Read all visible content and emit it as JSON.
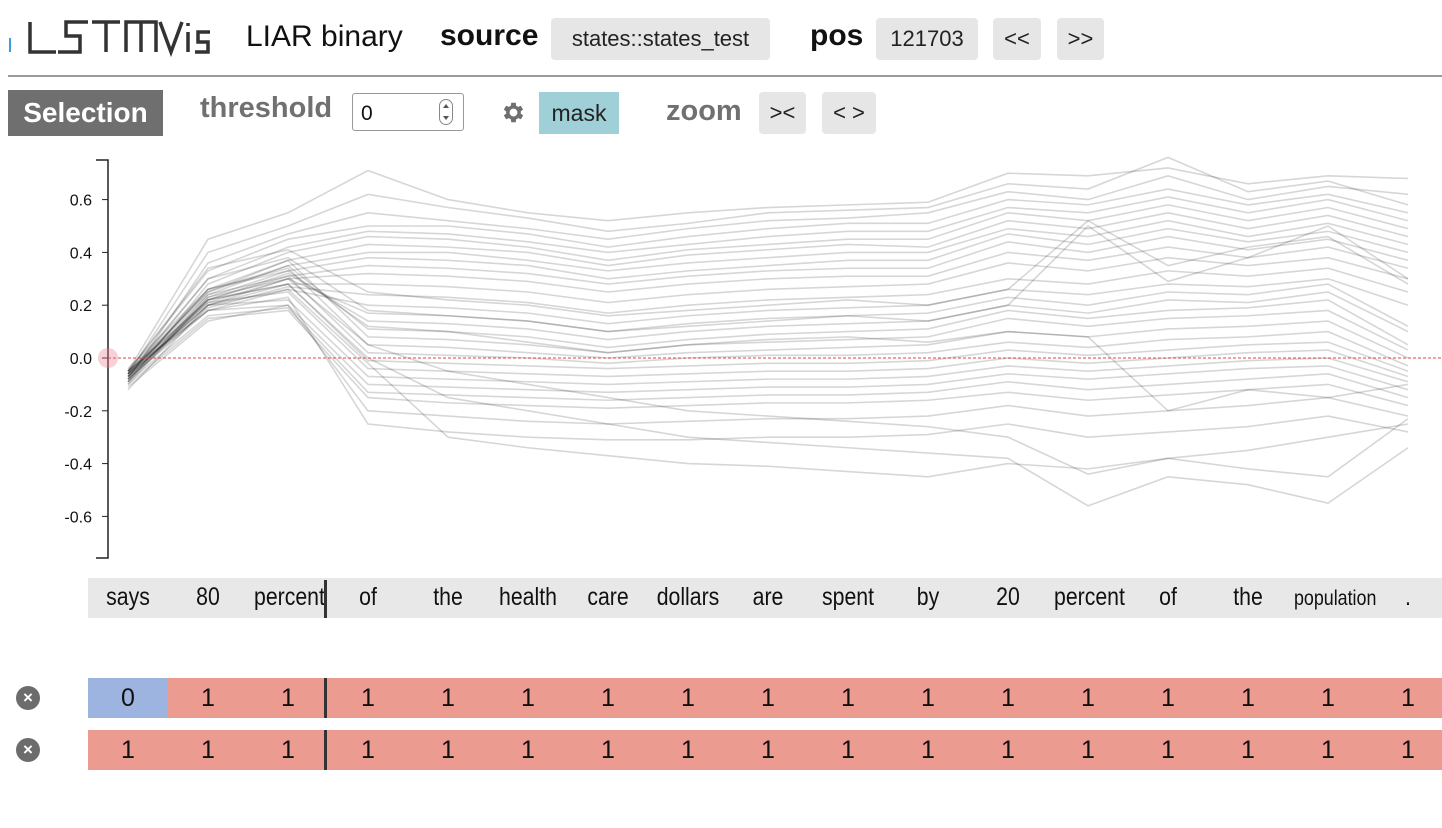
{
  "header": {
    "logo": "LSTMVis",
    "subtitle": "LIAR binary",
    "source_label": "source",
    "source_value": "states::states_test",
    "pos_label": "pos",
    "pos_value": "121703",
    "prev_label": "<<",
    "next_label": ">>"
  },
  "toolbar": {
    "selection_label": "Selection",
    "threshold_label": "threshold",
    "threshold_value": "0",
    "settings_icon": "gear-icon",
    "mask_label": "mask",
    "zoom_label": "zoom",
    "zoom_in_label": "><",
    "zoom_out_label": "< >"
  },
  "words": [
    "says",
    "80",
    "percent",
    "of",
    "the",
    "health",
    "care",
    "dollars",
    "are",
    "spent",
    "by",
    "20",
    "percent",
    "of",
    "the",
    "population",
    "."
  ],
  "rows": [
    {
      "values": [
        "0",
        "1",
        "1",
        "1",
        "1",
        "1",
        "1",
        "1",
        "1",
        "1",
        "1",
        "1",
        "1",
        "1",
        "1",
        "1",
        "1"
      ]
    },
    {
      "values": [
        "1",
        "1",
        "1",
        "1",
        "1",
        "1",
        "1",
        "1",
        "1",
        "1",
        "1",
        "1",
        "1",
        "1",
        "1",
        "1",
        "1"
      ]
    }
  ],
  "colors": {
    "zero": "#9db4e0",
    "one": "#ec9b90",
    "threshold_line": "#d44"
  },
  "chart_data": {
    "type": "line",
    "x": [
      "says",
      "80",
      "percent",
      "of",
      "the",
      "health",
      "care",
      "dollars",
      "are",
      "spent",
      "by",
      "20",
      "percent",
      "of",
      "the",
      "population",
      "."
    ],
    "ylim": [
      -0.75,
      0.75
    ],
    "yticks": [
      "0.6",
      "0.4",
      "0.2",
      "0.0",
      "-0.2",
      "-0.4",
      "-0.6"
    ],
    "threshold": 0,
    "series": [
      {
        "values": [
          -0.05,
          0.45,
          0.55,
          0.71,
          0.6,
          0.55,
          0.52,
          0.55,
          0.57,
          0.58,
          0.59,
          0.7,
          0.69,
          0.72,
          0.66,
          0.69,
          0.68
        ]
      },
      {
        "values": [
          -0.06,
          0.4,
          0.5,
          0.62,
          0.57,
          0.53,
          0.48,
          0.51,
          0.55,
          0.56,
          0.57,
          0.66,
          0.64,
          0.76,
          0.63,
          0.67,
          0.58
        ]
      },
      {
        "values": [
          -0.08,
          0.36,
          0.47,
          0.55,
          0.52,
          0.49,
          0.45,
          0.49,
          0.52,
          0.53,
          0.55,
          0.63,
          0.6,
          0.69,
          0.6,
          0.65,
          0.62
        ]
      },
      {
        "values": [
          -0.05,
          0.33,
          0.45,
          0.5,
          0.5,
          0.47,
          0.42,
          0.46,
          0.49,
          0.51,
          0.51,
          0.6,
          0.58,
          0.64,
          0.58,
          0.62,
          0.55
        ]
      },
      {
        "values": [
          -0.07,
          0.3,
          0.42,
          0.48,
          0.47,
          0.44,
          0.4,
          0.43,
          0.46,
          0.48,
          0.48,
          0.57,
          0.55,
          0.61,
          0.55,
          0.6,
          0.52
        ]
      },
      {
        "values": [
          -0.09,
          0.28,
          0.4,
          0.46,
          0.45,
          0.42,
          0.37,
          0.41,
          0.43,
          0.45,
          0.45,
          0.55,
          0.52,
          0.58,
          0.52,
          0.57,
          0.49
        ]
      },
      {
        "values": [
          -0.04,
          0.26,
          0.37,
          0.43,
          0.42,
          0.4,
          0.35,
          0.39,
          0.41,
          0.43,
          0.42,
          0.52,
          0.49,
          0.55,
          0.49,
          0.54,
          0.46
        ]
      },
      {
        "values": [
          -0.06,
          0.25,
          0.35,
          0.4,
          0.4,
          0.37,
          0.33,
          0.36,
          0.38,
          0.4,
          0.4,
          0.49,
          0.46,
          0.52,
          0.46,
          0.51,
          0.43
        ]
      },
      {
        "values": [
          -0.08,
          0.23,
          0.33,
          0.38,
          0.37,
          0.35,
          0.3,
          0.33,
          0.35,
          0.37,
          0.37,
          0.47,
          0.43,
          0.49,
          0.44,
          0.48,
          0.4
        ]
      },
      {
        "values": [
          -0.05,
          0.22,
          0.31,
          0.35,
          0.34,
          0.32,
          0.28,
          0.31,
          0.33,
          0.34,
          0.34,
          0.44,
          0.4,
          0.46,
          0.41,
          0.45,
          0.37
        ]
      },
      {
        "values": [
          -0.07,
          0.21,
          0.3,
          0.32,
          0.31,
          0.29,
          0.25,
          0.28,
          0.3,
          0.31,
          0.31,
          0.4,
          0.37,
          0.42,
          0.38,
          0.42,
          0.34
        ]
      },
      {
        "values": [
          -0.06,
          0.2,
          0.28,
          0.28,
          0.27,
          0.25,
          0.21,
          0.24,
          0.26,
          0.27,
          0.28,
          0.36,
          0.33,
          0.38,
          0.35,
          0.38,
          0.3
        ]
      },
      {
        "values": [
          -0.08,
          0.19,
          0.27,
          0.24,
          0.23,
          0.21,
          0.17,
          0.2,
          0.22,
          0.23,
          0.24,
          0.3,
          0.28,
          0.33,
          0.31,
          0.34,
          0.25
        ]
      },
      {
        "values": [
          -0.05,
          0.18,
          0.26,
          0.2,
          0.19,
          0.17,
          0.13,
          0.16,
          0.18,
          0.19,
          0.2,
          0.26,
          0.24,
          0.28,
          0.27,
          0.3,
          0.2
        ]
      },
      {
        "values": [
          -0.07,
          0.2,
          0.3,
          0.17,
          0.16,
          0.14,
          0.1,
          0.13,
          0.15,
          0.16,
          0.17,
          0.23,
          0.2,
          0.25,
          0.24,
          0.28,
          0.12
        ]
      },
      {
        "values": [
          -0.06,
          0.22,
          0.32,
          0.14,
          0.13,
          0.11,
          0.07,
          0.1,
          0.12,
          0.13,
          0.14,
          0.2,
          0.17,
          0.22,
          0.21,
          0.25,
          0.1
        ]
      },
      {
        "values": [
          -0.09,
          0.24,
          0.35,
          0.11,
          0.1,
          0.08,
          0.04,
          0.07,
          0.09,
          0.1,
          0.11,
          0.18,
          0.15,
          0.18,
          0.19,
          0.22,
          0.05
        ]
      },
      {
        "values": [
          -0.05,
          0.25,
          0.37,
          0.08,
          0.07,
          0.05,
          0.02,
          0.05,
          0.06,
          0.07,
          0.08,
          0.15,
          0.12,
          0.15,
          0.16,
          0.18,
          0.03
        ]
      },
      {
        "values": [
          -0.07,
          0.26,
          0.34,
          0.05,
          0.04,
          0.02,
          0.0,
          0.02,
          0.03,
          0.04,
          0.05,
          0.1,
          0.08,
          0.11,
          0.12,
          0.14,
          0.0
        ]
      },
      {
        "values": [
          -0.06,
          0.24,
          0.31,
          0.02,
          0.01,
          0.0,
          -0.02,
          0.0,
          0.01,
          0.01,
          0.02,
          0.06,
          0.04,
          0.07,
          0.08,
          0.1,
          -0.03
        ]
      },
      {
        "values": [
          -0.08,
          0.22,
          0.28,
          -0.01,
          -0.02,
          -0.03,
          -0.04,
          -0.03,
          -0.02,
          -0.02,
          -0.01,
          0.03,
          0.01,
          0.03,
          0.05,
          0.06,
          -0.05
        ]
      },
      {
        "values": [
          -0.05,
          0.21,
          0.25,
          -0.04,
          -0.05,
          -0.06,
          -0.07,
          -0.06,
          -0.05,
          -0.05,
          -0.04,
          0.0,
          -0.02,
          0.0,
          0.02,
          0.03,
          -0.07
        ]
      },
      {
        "values": [
          -0.07,
          0.2,
          0.22,
          -0.07,
          -0.08,
          -0.09,
          -0.1,
          -0.09,
          -0.08,
          -0.08,
          -0.07,
          -0.03,
          -0.05,
          -0.03,
          -0.01,
          0.0,
          -0.09
        ]
      },
      {
        "values": [
          -0.06,
          0.18,
          0.2,
          -0.1,
          -0.11,
          -0.12,
          -0.13,
          -0.12,
          -0.11,
          -0.11,
          -0.1,
          -0.06,
          -0.08,
          -0.06,
          -0.04,
          -0.03,
          -0.12
        ]
      },
      {
        "values": [
          -0.09,
          0.16,
          0.19,
          -0.13,
          -0.14,
          -0.15,
          -0.16,
          -0.15,
          -0.14,
          -0.14,
          -0.13,
          -0.09,
          -0.12,
          -0.1,
          -0.08,
          -0.06,
          -0.15
        ]
      },
      {
        "values": [
          -0.1,
          0.15,
          0.18,
          -0.15,
          -0.17,
          -0.18,
          -0.19,
          -0.18,
          -0.17,
          -0.17,
          -0.16,
          -0.13,
          -0.16,
          -0.14,
          -0.12,
          -0.1,
          -0.18
        ]
      },
      {
        "values": [
          -0.11,
          0.14,
          0.2,
          -0.2,
          -0.22,
          -0.24,
          -0.25,
          -0.24,
          -0.23,
          -0.23,
          -0.22,
          -0.18,
          -0.22,
          -0.2,
          -0.18,
          -0.15,
          -0.22
        ]
      },
      {
        "values": [
          -0.08,
          0.18,
          0.23,
          -0.25,
          -0.28,
          -0.3,
          -0.31,
          -0.31,
          -0.3,
          -0.3,
          -0.29,
          -0.25,
          -0.3,
          -0.28,
          -0.26,
          -0.22,
          -0.28
        ]
      },
      {
        "values": [
          -0.12,
          0.2,
          0.26,
          -0.02,
          -0.3,
          -0.34,
          -0.37,
          -0.4,
          -0.41,
          -0.43,
          -0.45,
          -0.4,
          -0.42,
          -0.38,
          -0.35,
          -0.3,
          -0.25
        ]
      },
      {
        "values": [
          -0.09,
          0.22,
          0.28,
          0.0,
          -0.15,
          -0.2,
          -0.25,
          -0.3,
          -0.32,
          -0.34,
          -0.36,
          -0.38,
          -0.56,
          -0.45,
          -0.48,
          -0.55,
          -0.34
        ]
      },
      {
        "values": [
          -0.1,
          0.23,
          0.3,
          0.05,
          -0.05,
          -0.1,
          -0.15,
          -0.2,
          -0.22,
          -0.24,
          -0.26,
          -0.3,
          -0.44,
          -0.38,
          -0.42,
          -0.45,
          -0.23
        ]
      },
      {
        "values": [
          -0.07,
          0.26,
          0.33,
          0.12,
          0.1,
          0.06,
          0.02,
          0.05,
          0.07,
          0.08,
          0.06,
          0.1,
          0.08,
          -0.2,
          -0.12,
          -0.15,
          -0.1
        ]
      },
      {
        "values": [
          -0.06,
          0.3,
          0.38,
          0.18,
          0.16,
          0.14,
          0.1,
          0.12,
          0.14,
          0.16,
          0.14,
          0.2,
          0.5,
          0.29,
          0.38,
          0.5,
          0.3
        ]
      },
      {
        "values": [
          -0.05,
          0.34,
          0.41,
          0.25,
          0.22,
          0.2,
          0.16,
          0.18,
          0.2,
          0.22,
          0.2,
          0.26,
          0.52,
          0.35,
          0.42,
          0.46,
          0.28
        ]
      }
    ]
  }
}
